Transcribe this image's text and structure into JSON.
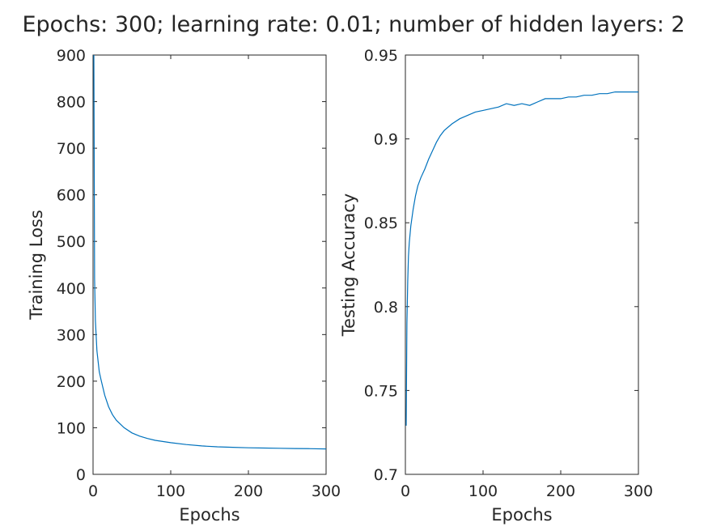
{
  "title": "Epochs: 300; learning rate: 0.01; number of hidden layers: 2",
  "colors": {
    "line": "#0072bd",
    "axis": "#262626",
    "text": "#262626",
    "background": "#ffffff"
  },
  "chart_data": [
    {
      "type": "line",
      "xlabel": "Epochs",
      "ylabel": "Training Loss",
      "xlim": [
        0,
        300
      ],
      "ylim": [
        0,
        900
      ],
      "xticks": [
        "0",
        "100",
        "200",
        "300"
      ],
      "yticks": [
        "0",
        "100",
        "200",
        "300",
        "400",
        "500",
        "600",
        "700",
        "800",
        "900"
      ],
      "grid": false,
      "series": [
        {
          "x": [
            1,
            2,
            3,
            5,
            8,
            10,
            15,
            20,
            25,
            30,
            40,
            50,
            60,
            70,
            80,
            100,
            120,
            140,
            160,
            180,
            200,
            220,
            240,
            260,
            280,
            300
          ],
          "y": [
            900,
            420,
            330,
            265,
            220,
            205,
            170,
            145,
            128,
            116,
            100,
            89,
            82,
            77,
            73,
            68,
            64,
            61,
            59,
            58,
            57,
            56.5,
            56,
            55.5,
            55,
            54.5
          ]
        }
      ]
    },
    {
      "type": "line",
      "xlabel": "Epochs",
      "ylabel": "Testing Accuracy",
      "xlim": [
        0,
        300
      ],
      "ylim": [
        0.7,
        0.95
      ],
      "xticks": [
        "0",
        "100",
        "200",
        "300"
      ],
      "yticks": [
        "0.7",
        "0.75",
        "0.8",
        "0.85",
        "0.9",
        "0.95"
      ],
      "grid": false,
      "series": [
        {
          "x": [
            1,
            2,
            3,
            4,
            5,
            7,
            10,
            13,
            16,
            20,
            25,
            30,
            35,
            40,
            45,
            50,
            60,
            70,
            80,
            90,
            100,
            110,
            120,
            130,
            140,
            150,
            160,
            170,
            180,
            190,
            200,
            210,
            220,
            230,
            240,
            250,
            260,
            270,
            280,
            290,
            300
          ],
          "y": [
            0.729,
            0.79,
            0.815,
            0.83,
            0.838,
            0.848,
            0.858,
            0.866,
            0.872,
            0.877,
            0.882,
            0.888,
            0.893,
            0.898,
            0.902,
            0.905,
            0.909,
            0.912,
            0.914,
            0.916,
            0.917,
            0.918,
            0.919,
            0.921,
            0.92,
            0.921,
            0.92,
            0.922,
            0.924,
            0.924,
            0.924,
            0.925,
            0.925,
            0.926,
            0.926,
            0.927,
            0.927,
            0.928,
            0.928,
            0.928,
            0.928
          ]
        }
      ]
    }
  ]
}
